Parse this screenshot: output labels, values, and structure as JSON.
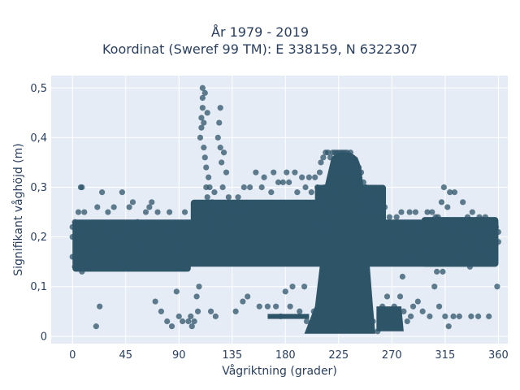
{
  "chart_data": {
    "type": "scatter",
    "title": "År 1979 - 2019",
    "subtitle": "Koordinat (Sweref 99 TM): E 338159, N 6322307",
    "xlabel": "Vågriktning (grader)",
    "ylabel": "Signifikant våghöjd (m)",
    "xlim": [
      -18,
      368
    ],
    "ylim": [
      -0.015,
      0.525
    ],
    "xticks": [
      0,
      45,
      90,
      135,
      180,
      225,
      270,
      315,
      360
    ],
    "xtick_labels": [
      "0",
      "45",
      "90",
      "135",
      "180",
      "225",
      "270",
      "315",
      "360"
    ],
    "yticks": [
      0,
      0.1,
      0.2,
      0.3,
      0.4,
      0.5
    ],
    "ytick_labels": [
      "0",
      "0,1",
      "0,2",
      "0,3",
      "0,4",
      "0,5"
    ],
    "grid": true,
    "legend": "none",
    "marker_color": "#2e5468",
    "background": "#e5ecf6",
    "series": [
      {
        "points": [
          [
            0,
            0.16
          ],
          [
            0,
            0.2
          ],
          [
            0,
            0.22
          ],
          [
            2,
            0.14
          ],
          [
            2,
            0.23
          ],
          [
            5,
            0.21
          ],
          [
            5,
            0.25
          ],
          [
            7,
            0.3
          ],
          [
            8,
            0.13
          ],
          [
            8,
            0.3
          ],
          [
            10,
            0.25
          ],
          [
            14,
            0.15
          ],
          [
            16,
            0.22
          ],
          [
            18,
            0.17
          ],
          [
            20,
            0.02
          ],
          [
            21,
            0.26
          ],
          [
            23,
            0.06
          ],
          [
            25,
            0.29
          ],
          [
            28,
            0.22
          ],
          [
            30,
            0.25
          ],
          [
            35,
            0.26
          ],
          [
            38,
            0.2
          ],
          [
            40,
            0.15
          ],
          [
            42,
            0.29
          ],
          [
            45,
            0.22
          ],
          [
            48,
            0.26
          ],
          [
            51,
            0.27
          ],
          [
            55,
            0.23
          ],
          [
            58,
            0.18
          ],
          [
            60,
            0.22
          ],
          [
            62,
            0.25
          ],
          [
            65,
            0.26
          ],
          [
            67,
            0.27
          ],
          [
            70,
            0.07
          ],
          [
            72,
            0.25
          ],
          [
            75,
            0.05
          ],
          [
            78,
            0.21
          ],
          [
            80,
            0.03
          ],
          [
            82,
            0.25
          ],
          [
            84,
            0.02
          ],
          [
            86,
            0.22
          ],
          [
            88,
            0.09
          ],
          [
            90,
            0.04
          ],
          [
            91,
            0.18
          ],
          [
            93,
            0.03
          ],
          [
            95,
            0.25
          ],
          [
            97,
            0.14
          ],
          [
            98,
            0.03
          ],
          [
            100,
            0.04
          ],
          [
            101,
            0.02
          ],
          [
            103,
            0.03
          ],
          [
            104,
            0.26
          ],
          [
            105,
            0.08
          ],
          [
            106,
            0.05
          ],
          [
            107,
            0.1
          ],
          [
            108,
            0.15
          ],
          [
            108,
            0.4
          ],
          [
            109,
            0.42
          ],
          [
            109,
            0.44
          ],
          [
            110,
            0.46
          ],
          [
            110,
            0.48
          ],
          [
            110,
            0.5
          ],
          [
            111,
            0.38
          ],
          [
            111,
            0.43
          ],
          [
            112,
            0.36
          ],
          [
            112,
            0.49
          ],
          [
            113,
            0.34
          ],
          [
            113,
            0.3
          ],
          [
            114,
            0.28
          ],
          [
            114,
            0.45
          ],
          [
            115,
            0.26
          ],
          [
            115,
            0.32
          ],
          [
            116,
            0.3
          ],
          [
            116,
            0.24
          ],
          [
            117,
            0.05
          ],
          [
            118,
            0.27
          ],
          [
            119,
            0.22
          ],
          [
            120,
            0.29
          ],
          [
            121,
            0.04
          ],
          [
            122,
            0.26
          ],
          [
            123,
            0.4
          ],
          [
            124,
            0.43
          ],
          [
            125,
            0.46
          ],
          [
            125,
            0.38
          ],
          [
            126,
            0.35
          ],
          [
            127,
            0.3
          ],
          [
            128,
            0.37
          ],
          [
            130,
            0.33
          ],
          [
            132,
            0.28
          ],
          [
            134,
            0.26
          ],
          [
            136,
            0.22
          ],
          [
            138,
            0.05
          ],
          [
            140,
            0.28
          ],
          [
            142,
            0.25
          ],
          [
            144,
            0.07
          ],
          [
            145,
            0.3
          ],
          [
            148,
            0.08
          ],
          [
            150,
            0.3
          ],
          [
            152,
            0.26
          ],
          [
            155,
            0.33
          ],
          [
            158,
            0.06
          ],
          [
            160,
            0.3
          ],
          [
            162,
            0.32
          ],
          [
            165,
            0.06
          ],
          [
            168,
            0.29
          ],
          [
            170,
            0.33
          ],
          [
            172,
            0.06
          ],
          [
            174,
            0.31
          ],
          [
            176,
            0.04
          ],
          [
            178,
            0.31
          ],
          [
            180,
            0.09
          ],
          [
            181,
            0.33
          ],
          [
            183,
            0.31
          ],
          [
            184,
            0.06
          ],
          [
            186,
            0.1
          ],
          [
            188,
            0.33
          ],
          [
            190,
            0.29
          ],
          [
            192,
            0.05
          ],
          [
            194,
            0.32
          ],
          [
            196,
            0.1
          ],
          [
            197,
            0.3
          ],
          [
            198,
            0.03
          ],
          [
            200,
            0.32
          ],
          [
            202,
            0.29
          ],
          [
            204,
            0.05
          ],
          [
            205,
            0.32
          ],
          [
            207,
            0.3
          ],
          [
            208,
            0.22
          ],
          [
            209,
            0.33
          ],
          [
            210,
            0.35
          ],
          [
            211,
            0.27
          ],
          [
            212,
            0.36
          ],
          [
            213,
            0.3
          ],
          [
            214,
            0.37
          ],
          [
            215,
            0.22
          ],
          [
            216,
            0.37
          ],
          [
            217,
            0.31
          ],
          [
            218,
            0.36
          ],
          [
            219,
            0.25
          ],
          [
            220,
            0.37
          ],
          [
            221,
            0.34
          ],
          [
            222,
            0.37
          ],
          [
            223,
            0.29
          ],
          [
            224,
            0.37
          ],
          [
            225,
            0.34
          ],
          [
            226,
            0.37
          ],
          [
            227,
            0.36
          ],
          [
            228,
            0.37
          ],
          [
            229,
            0.33
          ],
          [
            230,
            0.37
          ],
          [
            231,
            0.36
          ],
          [
            232,
            0.37
          ],
          [
            233,
            0.34
          ],
          [
            234,
            0.36
          ],
          [
            235,
            0.37
          ],
          [
            236,
            0.33
          ],
          [
            237,
            0.36
          ],
          [
            238,
            0.35
          ],
          [
            239,
            0.3
          ],
          [
            240,
            0.35
          ],
          [
            241,
            0.32
          ],
          [
            242,
            0.34
          ],
          [
            243,
            0.28
          ],
          [
            244,
            0.33
          ],
          [
            245,
            0.25
          ],
          [
            246,
            0.31
          ],
          [
            247,
            0.27
          ],
          [
            248,
            0.3
          ],
          [
            249,
            0.26
          ],
          [
            250,
            0.28
          ],
          [
            252,
            0.25
          ],
          [
            254,
            0.03
          ],
          [
            256,
            0.27
          ],
          [
            258,
            0.01
          ],
          [
            260,
            0.25
          ],
          [
            262,
            0.06
          ],
          [
            264,
            0.26
          ],
          [
            265,
            0.02
          ],
          [
            266,
            0.08
          ],
          [
            268,
            0.24
          ],
          [
            270,
            0.04
          ],
          [
            271,
            0.2
          ],
          [
            272,
            0.06
          ],
          [
            274,
            0.24
          ],
          [
            275,
            0.02
          ],
          [
            277,
            0.08
          ],
          [
            278,
            0.25
          ],
          [
            279,
            0.12
          ],
          [
            280,
            0.05
          ],
          [
            282,
            0.22
          ],
          [
            283,
            0.03
          ],
          [
            284,
            0.16
          ],
          [
            285,
            0.25
          ],
          [
            286,
            0.04
          ],
          [
            288,
            0.06
          ],
          [
            290,
            0.25
          ],
          [
            292,
            0.07
          ],
          [
            294,
            0.22
          ],
          [
            296,
            0.05
          ],
          [
            298,
            0.17
          ],
          [
            300,
            0.25
          ],
          [
            302,
            0.04
          ],
          [
            304,
            0.25
          ],
          [
            306,
            0.1
          ],
          [
            307,
            0.24
          ],
          [
            308,
            0.13
          ],
          [
            309,
            0.24
          ],
          [
            310,
            0.06
          ],
          [
            312,
            0.27
          ],
          [
            313,
            0.13
          ],
          [
            314,
            0.3
          ],
          [
            315,
            0.04
          ],
          [
            316,
            0.23
          ],
          [
            317,
            0.26
          ],
          [
            318,
            0.02
          ],
          [
            319,
            0.29
          ],
          [
            320,
            0.15
          ],
          [
            321,
            0.22
          ],
          [
            322,
            0.04
          ],
          [
            323,
            0.29
          ],
          [
            325,
            0.23
          ],
          [
            326,
            0.16
          ],
          [
            327,
            0.04
          ],
          [
            329,
            0.18
          ],
          [
            330,
            0.27
          ],
          [
            332,
            0.22
          ],
          [
            334,
            0.24
          ],
          [
            336,
            0.14
          ],
          [
            337,
            0.04
          ],
          [
            338,
            0.25
          ],
          [
            340,
            0.21
          ],
          [
            342,
            0.18
          ],
          [
            343,
            0.04
          ],
          [
            344,
            0.24
          ],
          [
            346,
            0.2
          ],
          [
            348,
            0.17
          ],
          [
            349,
            0.24
          ],
          [
            350,
            0.21
          ],
          [
            352,
            0.04
          ],
          [
            353,
            0.22
          ],
          [
            354,
            0.17
          ],
          [
            356,
            0.21
          ],
          [
            357,
            0.16
          ],
          [
            358,
            0.22
          ],
          [
            359,
            0.1
          ],
          [
            360,
            0.19
          ],
          [
            360,
            0.21
          ]
        ]
      }
    ]
  }
}
